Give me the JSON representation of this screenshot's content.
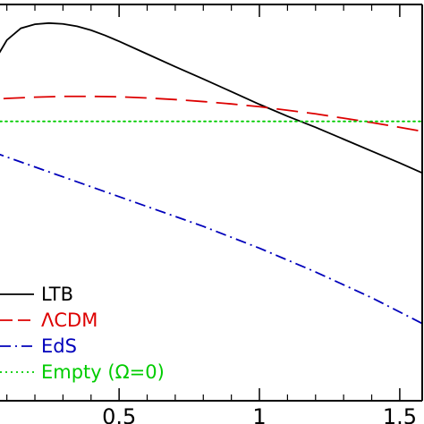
{
  "chart_data": {
    "type": "line",
    "title": "",
    "xlabel": "",
    "ylabel": "",
    "xlim": [
      -0.02,
      1.58
    ],
    "ylim": [
      0,
      1
    ],
    "x_ticks": [
      {
        "value": 0.5,
        "label": "0.5"
      },
      {
        "value": 1,
        "label": "1"
      },
      {
        "value": 1.5,
        "label": "1.5"
      }
    ],
    "legend_position": "bottom-left",
    "series": [
      {
        "name": "LTB",
        "color": "#000000",
        "dash": "solid",
        "x": [
          -0.02,
          0.0,
          0.05,
          0.1,
          0.15,
          0.2,
          0.25,
          0.3,
          0.35,
          0.4,
          0.45,
          0.5,
          0.6,
          0.7,
          0.8,
          0.9,
          1.0,
          1.1,
          1.2,
          1.3,
          1.4,
          1.5,
          1.58
        ],
        "y": [
          0.78,
          0.785,
          0.85,
          0.91,
          0.94,
          0.95,
          0.953,
          0.951,
          0.945,
          0.935,
          0.922,
          0.907,
          0.875,
          0.843,
          0.812,
          0.78,
          0.748,
          0.718,
          0.69,
          0.66,
          0.63,
          0.6,
          0.575
        ]
      },
      {
        "name": "ΛCDM",
        "color": "#dd0000",
        "dash": "long-dash",
        "x": [
          -0.02,
          0.0,
          0.1,
          0.2,
          0.3,
          0.4,
          0.5,
          0.6,
          0.7,
          0.8,
          0.9,
          1.0,
          1.1,
          1.2,
          1.3,
          1.4,
          1.5,
          1.58
        ],
        "y": [
          0.757,
          0.758,
          0.763,
          0.766,
          0.768,
          0.768,
          0.767,
          0.764,
          0.76,
          0.755,
          0.749,
          0.742,
          0.733,
          0.724,
          0.713,
          0.702,
          0.69,
          0.68
        ]
      },
      {
        "name": "EdS",
        "color": "#0000bb",
        "dash": "dash-dot",
        "x": [
          -0.02,
          0.0,
          0.2,
          0.4,
          0.6,
          0.8,
          1.0,
          1.2,
          1.4,
          1.58
        ],
        "y": [
          0.645,
          0.64,
          0.59,
          0.54,
          0.49,
          0.44,
          0.385,
          0.325,
          0.26,
          0.195
        ]
      },
      {
        "name": "Empty (Ω=0)",
        "color": "#00cc00",
        "dash": "dotted",
        "x": [
          -0.02,
          1.58
        ],
        "y": [
          0.705,
          0.705
        ]
      }
    ]
  }
}
